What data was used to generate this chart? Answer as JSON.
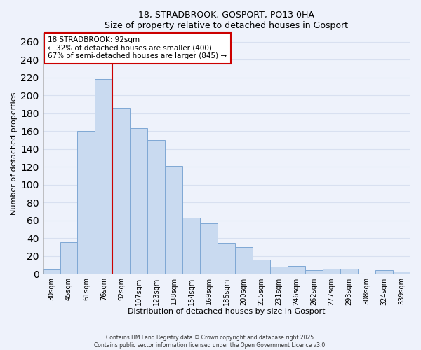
{
  "title": "18, STRADBROOK, GOSPORT, PO13 0HA",
  "subtitle": "Size of property relative to detached houses in Gosport",
  "xlabel": "Distribution of detached houses by size in Gosport",
  "ylabel": "Number of detached properties",
  "categories": [
    "30sqm",
    "45sqm",
    "61sqm",
    "76sqm",
    "92sqm",
    "107sqm",
    "123sqm",
    "138sqm",
    "154sqm",
    "169sqm",
    "185sqm",
    "200sqm",
    "215sqm",
    "231sqm",
    "246sqm",
    "262sqm",
    "277sqm",
    "293sqm",
    "308sqm",
    "324sqm",
    "339sqm"
  ],
  "values": [
    5,
    36,
    160,
    218,
    186,
    163,
    150,
    121,
    63,
    57,
    35,
    30,
    16,
    8,
    9,
    4,
    6,
    6,
    0,
    4,
    3
  ],
  "bar_color": "#c9daf0",
  "bar_edge_color": "#7fa8d4",
  "vline_x_index": 3,
  "vline_color": "#cc0000",
  "ylim": [
    0,
    270
  ],
  "yticks": [
    0,
    20,
    40,
    60,
    80,
    100,
    120,
    140,
    160,
    180,
    200,
    220,
    240,
    260
  ],
  "annotation_text": "18 STRADBROOK: 92sqm\n← 32% of detached houses are smaller (400)\n67% of semi-detached houses are larger (845) →",
  "annotation_box_color": "#ffffff",
  "annotation_box_edge": "#cc0000",
  "footer_line1": "Contains HM Land Registry data © Crown copyright and database right 2025.",
  "footer_line2": "Contains public sector information licensed under the Open Government Licence v3.0.",
  "background_color": "#eef2fb",
  "grid_color": "#d8e0f0",
  "title_fontsize": 9,
  "axis_fontsize": 8,
  "tick_fontsize": 7
}
